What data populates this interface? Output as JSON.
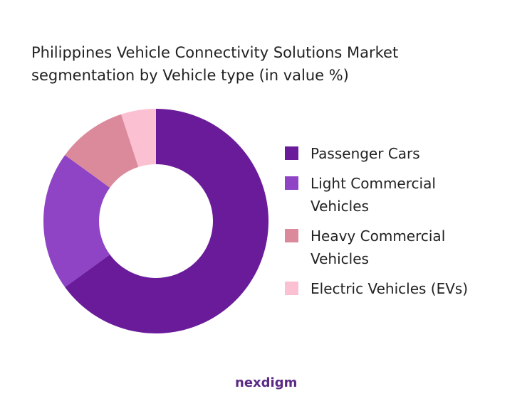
{
  "chart_data": {
    "type": "donut",
    "title": "Philippines Vehicle Connectivity Solutions Market segmentation by Vehicle type (in value %)",
    "categories": [
      "Passenger Cars",
      "Light Commercial Vehicles",
      "Heavy Commercial Vehicles",
      "Electric Vehicles (EVs)"
    ],
    "values": [
      65,
      20,
      10,
      5
    ],
    "colors": [
      "#6a1b9a",
      "#8e44c4",
      "#db8a9c",
      "#fcc0d3"
    ],
    "legend": "right",
    "watermark": "nexdigm"
  }
}
